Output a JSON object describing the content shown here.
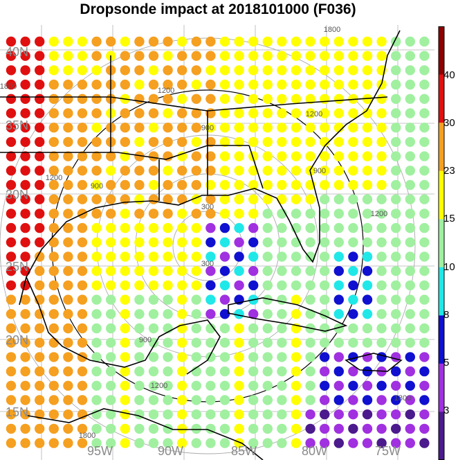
{
  "title": "Dropsonde impact at 2018101000 (F036)",
  "lat_labels": [
    "40N",
    "35N",
    "30N",
    "25N",
    "20N",
    "15N"
  ],
  "lon_labels": [
    "95W",
    "90W",
    "85W",
    "80W",
    "75W"
  ],
  "range_ring_labels": [
    "300",
    "900",
    "1200",
    "1800"
  ],
  "colorbar": {
    "tick_labels": [
      "40",
      "30",
      "23",
      "15",
      "10",
      "8",
      "5",
      "3"
    ],
    "bins": [
      {
        "color": "#8b0000"
      },
      {
        "color": "#e01010"
      },
      {
        "color": "#f5a020"
      },
      {
        "color": "#ffff00"
      },
      {
        "color": "#a0f0a0"
      },
      {
        "color": "#20e8e8"
      },
      {
        "color": "#1010d0"
      },
      {
        "color": "#a030e0"
      },
      {
        "color": "#4b1a8c"
      }
    ]
  }
}
